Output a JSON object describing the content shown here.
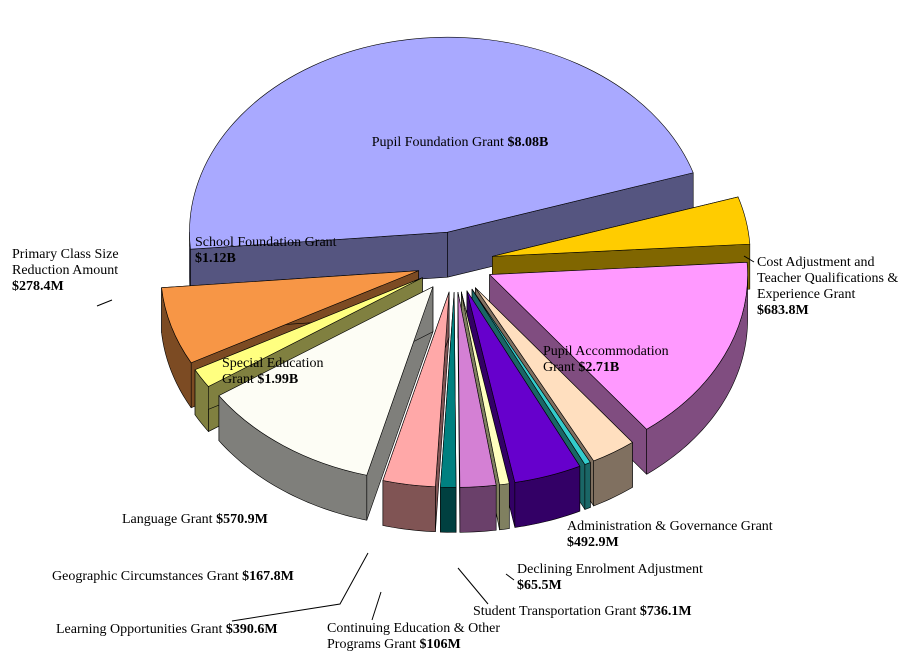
{
  "chart_data": {
    "type": "pie",
    "categories": [
      "Pupil Foundation Grant",
      "Cost Adjustment and Teacher Qualifications & Experience Grant",
      "Pupil Accommodation Grant",
      "Administration & Governance Grant",
      "Declining Enrolment Adjustment",
      "Student Transportation Grant",
      "Continuing Education & Other Programs Grant",
      "Learning Opportunities Grant",
      "Geographic Circumstances Grant",
      "Language Grant",
      "Special Education Grant",
      "Primary Class Size Reduction Amount",
      "School Foundation Grant"
    ],
    "values": [
      8080,
      683.8,
      2710,
      492.9,
      65.5,
      736.1,
      106,
      390.6,
      167.8,
      570.9,
      1990,
      278.4,
      1120
    ],
    "value_labels": [
      "$8.08B",
      "$683.8M",
      "$2.71B",
      "$492.9M",
      "$65.5M",
      "$736.1M",
      "$106M",
      "$390.6M",
      "$167.8M",
      "$570.9M",
      "$1.99B",
      "$278.4M",
      "$1.12B"
    ],
    "colors": [
      "#a9a9ff",
      "#ffcc00",
      "#ff99ff",
      "#ffdfbf",
      "#33cccc",
      "#6600cc",
      "#ffffbf",
      "#d480d4",
      "#008080",
      "#ffa8a8",
      "#fdfdf5",
      "#ffff80",
      "#f79646"
    ]
  }
}
